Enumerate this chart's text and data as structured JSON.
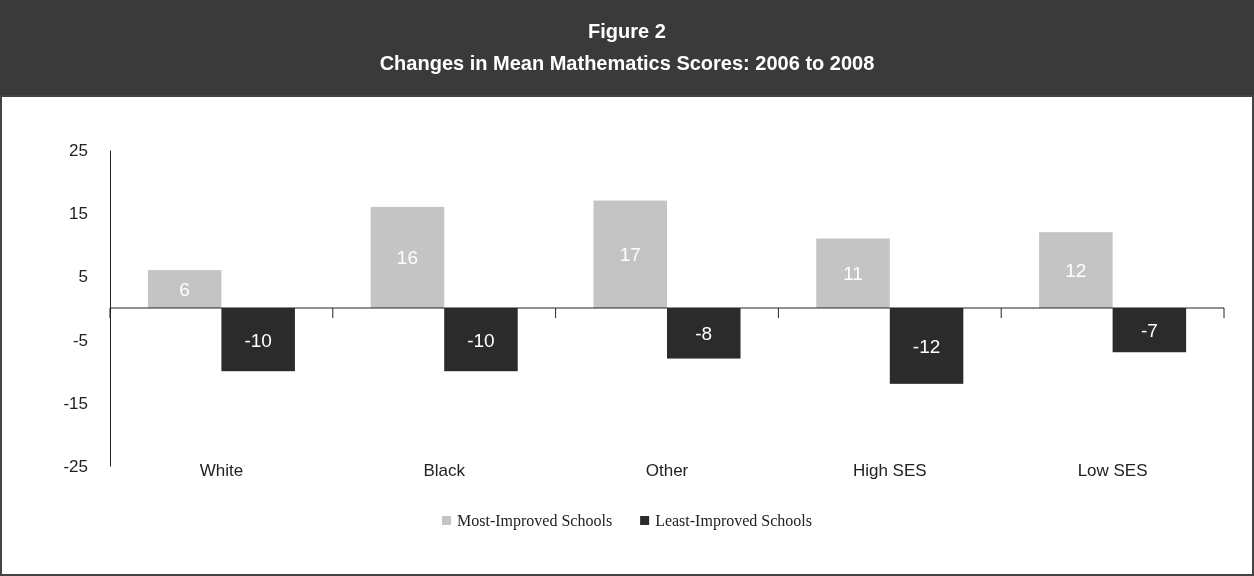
{
  "chart_data": {
    "type": "bar",
    "title": "Figure 2",
    "subtitle": "Changes in Mean Mathematics Scores: 2006 to 2008",
    "categories": [
      "White",
      "Black",
      "Other",
      "High SES",
      "Low SES"
    ],
    "series": [
      {
        "name": "Most-Improved Schools",
        "color": "#c4c4c4",
        "values": [
          6,
          16,
          17,
          11,
          12
        ]
      },
      {
        "name": "Least-Improved Schools",
        "color": "#2b2b2b",
        "values": [
          -10,
          -10,
          -8,
          -12,
          -7
        ]
      }
    ],
    "ylim": [
      -25,
      25
    ],
    "yticks": [
      -25,
      -15,
      -5,
      5,
      15,
      25
    ],
    "grid": false,
    "legend": "bottom",
    "data_labels": true
  }
}
